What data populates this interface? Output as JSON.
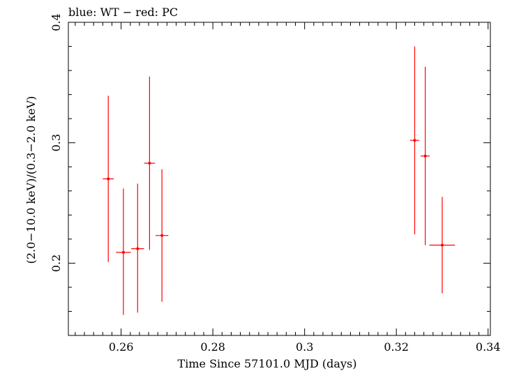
{
  "chart_data": {
    "type": "scatter",
    "title": "blue: WT − red: PC",
    "xlabel": "Time Since 57101.0 MJD (days)",
    "ylabel": "(2.0−10.0 keV)/(0.3−2.0 keV)",
    "xlim": [
      0.2485,
      0.3405
    ],
    "ylim": [
      0.14,
      0.4
    ],
    "x_ticks": [
      0.26,
      0.28,
      0.3,
      0.32,
      0.34
    ],
    "x_tick_labels": [
      "0.26",
      "0.28",
      "0.3",
      "0.32",
      "0.34"
    ],
    "x_minor_step": 0.002,
    "y_ticks": [
      0.2,
      0.3,
      0.4
    ],
    "y_tick_labels": [
      "0.2",
      "0.3",
      "0.4"
    ],
    "y_minor_step": 0.02,
    "grid": false,
    "series": [
      {
        "name": "PC",
        "color": "#ff0000",
        "points": [
          {
            "x": 0.2572,
            "y": 0.27,
            "xerr_lo": 0.0012,
            "xerr_hi": 0.0012,
            "yerr_lo": 0.069,
            "yerr_hi": 0.069
          },
          {
            "x": 0.2605,
            "y": 0.209,
            "xerr_lo": 0.0016,
            "xerr_hi": 0.0016,
            "yerr_lo": 0.052,
            "yerr_hi": 0.053
          },
          {
            "x": 0.2636,
            "y": 0.212,
            "xerr_lo": 0.0014,
            "xerr_hi": 0.0014,
            "yerr_lo": 0.053,
            "yerr_hi": 0.054
          },
          {
            "x": 0.2662,
            "y": 0.283,
            "xerr_lo": 0.0012,
            "xerr_hi": 0.0012,
            "yerr_lo": 0.072,
            "yerr_hi": 0.072
          },
          {
            "x": 0.2689,
            "y": 0.223,
            "xerr_lo": 0.0014,
            "xerr_hi": 0.0014,
            "yerr_lo": 0.055,
            "yerr_hi": 0.055
          },
          {
            "x": 0.324,
            "y": 0.302,
            "xerr_lo": 0.001,
            "xerr_hi": 0.001,
            "yerr_lo": 0.078,
            "yerr_hi": 0.078
          },
          {
            "x": 0.3263,
            "y": 0.289,
            "xerr_lo": 0.001,
            "xerr_hi": 0.001,
            "yerr_lo": 0.074,
            "yerr_hi": 0.074
          },
          {
            "x": 0.33,
            "y": 0.215,
            "xerr_lo": 0.0028,
            "xerr_hi": 0.0028,
            "yerr_lo": 0.04,
            "yerr_hi": 0.04
          }
        ]
      }
    ]
  }
}
